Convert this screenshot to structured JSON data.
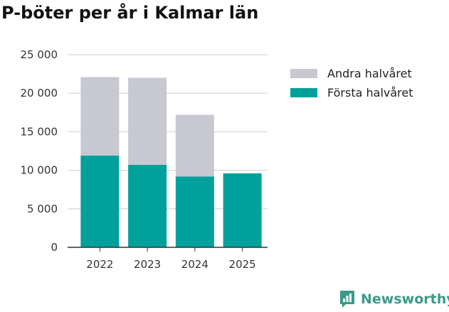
{
  "title": "P-böter per år i Kalmar län",
  "chart_data": {
    "type": "bar",
    "stacked": true,
    "categories": [
      "2022",
      "2023",
      "2024",
      "2025"
    ],
    "series": [
      {
        "name": "Första halvåret",
        "color": "#00a19a",
        "values": [
          11900,
          10700,
          9200,
          9600
        ]
      },
      {
        "name": "Andra halvåret",
        "color": "#c8c8d2",
        "values": [
          10200,
          11300,
          8000,
          0
        ]
      }
    ],
    "ylim": [
      0,
      25000
    ],
    "yticks": [
      0,
      5000,
      10000,
      15000,
      20000,
      25000
    ],
    "ytick_labels": [
      "0",
      "5 000",
      "10 000",
      "15 000",
      "20 000",
      "25 000"
    ],
    "grid": true,
    "legend": [
      {
        "label": "Andra halvåret",
        "color": "#c8c8d2"
      },
      {
        "label": "Första halvåret",
        "color": "#00a19a"
      }
    ]
  },
  "brand": {
    "name": "Newsworthy",
    "color": "#3b9a8a"
  }
}
